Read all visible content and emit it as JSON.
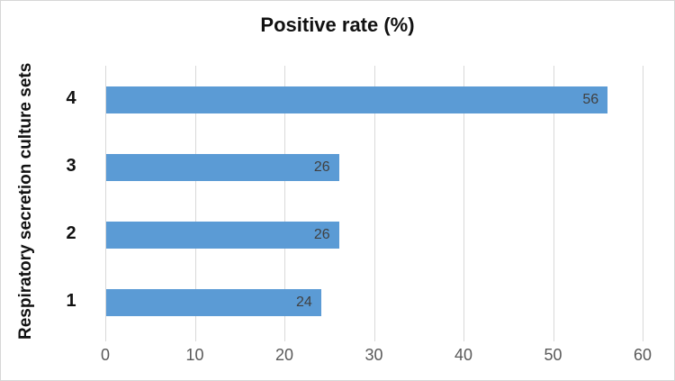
{
  "chart_data": {
    "type": "bar",
    "orientation": "horizontal",
    "title": "Positive rate (%)",
    "ylabel": "Respiratory secretion culture sets",
    "xlabel": "",
    "categories": [
      "4",
      "3",
      "2",
      "1"
    ],
    "values": [
      56,
      26,
      26,
      24
    ],
    "data_labels": [
      "56",
      "26",
      "26",
      "24"
    ],
    "data_label_position": "inside-end",
    "xlim": [
      0,
      60
    ],
    "xticks": [
      0,
      10,
      20,
      30,
      40,
      50,
      60
    ],
    "grid": "vertical-only",
    "legend_position": "none",
    "bar_color": "#5B9BD5",
    "gridline_color": "#D9D9D9",
    "tick_label_color": "#595959",
    "data_label_color": "#404040",
    "title_color": "#111111"
  }
}
